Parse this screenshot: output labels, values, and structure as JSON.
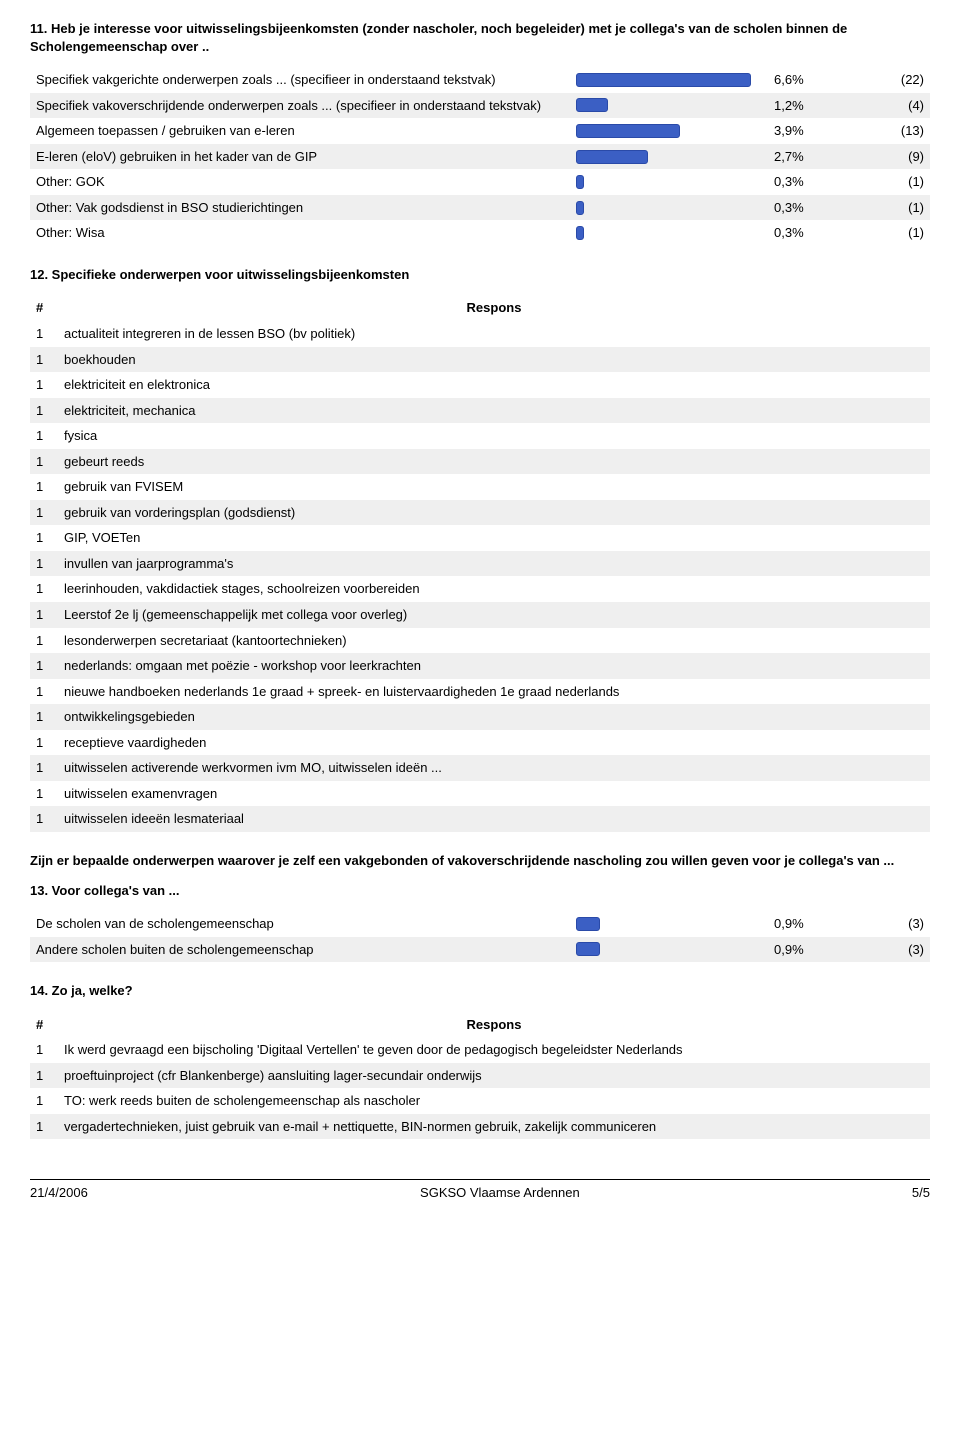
{
  "q11": {
    "title": "11. Heb je interesse voor uitwisselingsbijeenkomsten (zonder nascholer, noch begeleider) met je collega's van de scholen binnen de Scholengemeenschap over ..",
    "bar_max_pct": 7.0,
    "bar_color": "#3b5fc4",
    "rows": [
      {
        "label": "Specifiek vakgerichte onderwerpen zoals ... (specifieer in onderstaand tekstvak)",
        "pct": "6,6%",
        "pct_num": 6.6,
        "count": "(22)"
      },
      {
        "label": "Specifiek vakoverschrijdende onderwerpen zoals ... (specifieer in onderstaand tekstvak)",
        "pct": "1,2%",
        "pct_num": 1.2,
        "count": "(4)"
      },
      {
        "label": "Algemeen toepassen / gebruiken van e-leren",
        "pct": "3,9%",
        "pct_num": 3.9,
        "count": "(13)"
      },
      {
        "label": "E-leren (eloV) gebruiken in het kader van de GIP",
        "pct": "2,7%",
        "pct_num": 2.7,
        "count": "(9)"
      },
      {
        "label": "Other: GOK",
        "pct": "0,3%",
        "pct_num": 0.3,
        "count": "(1)"
      },
      {
        "label": "Other: Vak godsdienst in BSO studierichtingen",
        "pct": "0,3%",
        "pct_num": 0.3,
        "count": "(1)"
      },
      {
        "label": "Other: Wisa",
        "pct": "0,3%",
        "pct_num": 0.3,
        "count": "(1)"
      }
    ]
  },
  "q12": {
    "title": "12. Specifieke onderwerpen voor uitwisselingsbijeenkomsten",
    "col_num": "#",
    "col_resp": "Respons",
    "rows": [
      {
        "n": "1",
        "t": "actualiteit integreren in de lessen BSO (bv politiek)"
      },
      {
        "n": "1",
        "t": "boekhouden"
      },
      {
        "n": "1",
        "t": "elektriciteit en elektronica"
      },
      {
        "n": "1",
        "t": "elektriciteit, mechanica"
      },
      {
        "n": "1",
        "t": "fysica"
      },
      {
        "n": "1",
        "t": "gebeurt reeds"
      },
      {
        "n": "1",
        "t": "gebruik van FVISEM"
      },
      {
        "n": "1",
        "t": "gebruik van vorderingsplan (godsdienst)"
      },
      {
        "n": "1",
        "t": "GIP, VOETen"
      },
      {
        "n": "1",
        "t": "invullen van jaarprogramma's"
      },
      {
        "n": "1",
        "t": "leerinhouden, vakdidactiek stages, schoolreizen voorbereiden"
      },
      {
        "n": "1",
        "t": "Leerstof 2e lj (gemeenschappelijk met collega voor overleg)"
      },
      {
        "n": "1",
        "t": "lesonderwerpen secretariaat (kantoortechnieken)"
      },
      {
        "n": "1",
        "t": "nederlands: omgaan met poëzie - workshop voor leerkrachten"
      },
      {
        "n": "1",
        "t": "nieuwe handboeken nederlands 1e graad + spreek- en luistervaardigheden 1e graad nederlands"
      },
      {
        "n": "1",
        "t": "ontwikkelingsgebieden"
      },
      {
        "n": "1",
        "t": "receptieve vaardigheden"
      },
      {
        "n": "1",
        "t": "uitwisselen activerende werkvormen ivm MO, uitwisselen ideën ..."
      },
      {
        "n": "1",
        "t": "uitwisselen examenvragen"
      },
      {
        "n": "1",
        "t": "uitwisselen ideeën lesmateriaal"
      }
    ]
  },
  "q13": {
    "intro": "Zijn er bepaalde onderwerpen waarover je zelf een vakgebonden of vakoverschrijdende nascholing zou willen geven voor je collega's van ...",
    "title": "13. Voor collega's van ...",
    "bar_max_pct": 7.0,
    "bar_color": "#3b5fc4",
    "rows": [
      {
        "label": "De scholen van de scholengemeenschap",
        "pct": "0,9%",
        "pct_num": 0.9,
        "count": "(3)"
      },
      {
        "label": "Andere scholen buiten de scholengemeenschap",
        "pct": "0,9%",
        "pct_num": 0.9,
        "count": "(3)"
      }
    ]
  },
  "q14": {
    "title": "14. Zo ja, welke?",
    "col_num": "#",
    "col_resp": "Respons",
    "rows": [
      {
        "n": "1",
        "t": "Ik werd gevraagd een bijscholing 'Digitaal Vertellen' te geven door de pedagogisch begeleidster Nederlands"
      },
      {
        "n": "1",
        "t": "proeftuinproject (cfr Blankenberge) aansluiting lager-secundair onderwijs"
      },
      {
        "n": "1",
        "t": "TO: werk reeds buiten de scholengemeenschap als nascholer"
      },
      {
        "n": "1",
        "t": "vergadertechnieken, juist gebruik van e-mail + nettiquette, BIN-normen gebruik, zakelijk communiceren"
      }
    ]
  },
  "footer": {
    "left": "21/4/2006",
    "center": "SGKSO Vlaamse Ardennen",
    "right": "5/5"
  }
}
